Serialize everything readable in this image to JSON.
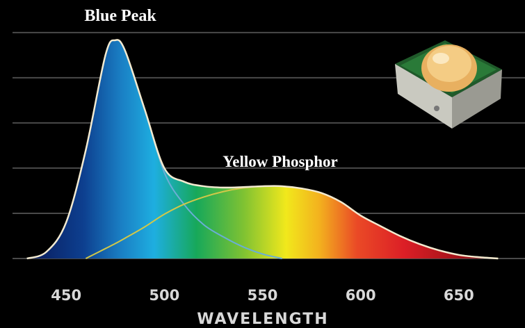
{
  "chart_data": {
    "type": "area",
    "x_label": "WAVELENGTH",
    "annotations": [
      "Blue Peak",
      "Yellow Phosphor"
    ],
    "x": [
      430,
      440,
      450,
      460,
      470,
      475,
      480,
      490,
      500,
      510,
      520,
      530,
      540,
      550,
      560,
      570,
      580,
      590,
      600,
      610,
      620,
      630,
      640,
      650,
      660,
      670
    ],
    "series": [
      {
        "color": "#f3ead0",
        "values": [
          0,
          0.15,
          0.8,
          2.4,
          4.5,
          4.83,
          4.6,
          3.3,
          2.0,
          1.7,
          1.6,
          1.57,
          1.58,
          1.6,
          1.6,
          1.55,
          1.45,
          1.25,
          0.95,
          0.72,
          0.5,
          0.32,
          0.18,
          0.08,
          0.03,
          0
        ]
      },
      {
        "color": "#6aaed6",
        "values": [
          0,
          0.15,
          0.8,
          2.4,
          4.5,
          4.83,
          4.6,
          3.3,
          1.9,
          1.2,
          0.75,
          0.48,
          0.26,
          0.1,
          0,
          null,
          null,
          null,
          null,
          null,
          null,
          null,
          null,
          null,
          null,
          null
        ]
      },
      {
        "color": "#d2c848",
        "values": [
          null,
          null,
          null,
          0,
          0.22,
          0.33,
          0.45,
          0.7,
          0.98,
          1.2,
          1.36,
          1.48,
          1.56,
          1.6,
          1.6,
          1.55,
          1.45,
          1.25,
          0.95,
          0.72,
          0.5,
          0.32,
          0.18,
          0.08,
          0.03,
          0
        ]
      }
    ],
    "xlim": [
      416.3,
      683.7
    ],
    "ylim": [
      0,
      5.72
    ],
    "xticks": [
      450,
      500,
      550,
      600,
      650
    ],
    "ygrid": [
      0,
      1,
      2,
      3,
      4,
      5
    ],
    "grid": true
  }
}
